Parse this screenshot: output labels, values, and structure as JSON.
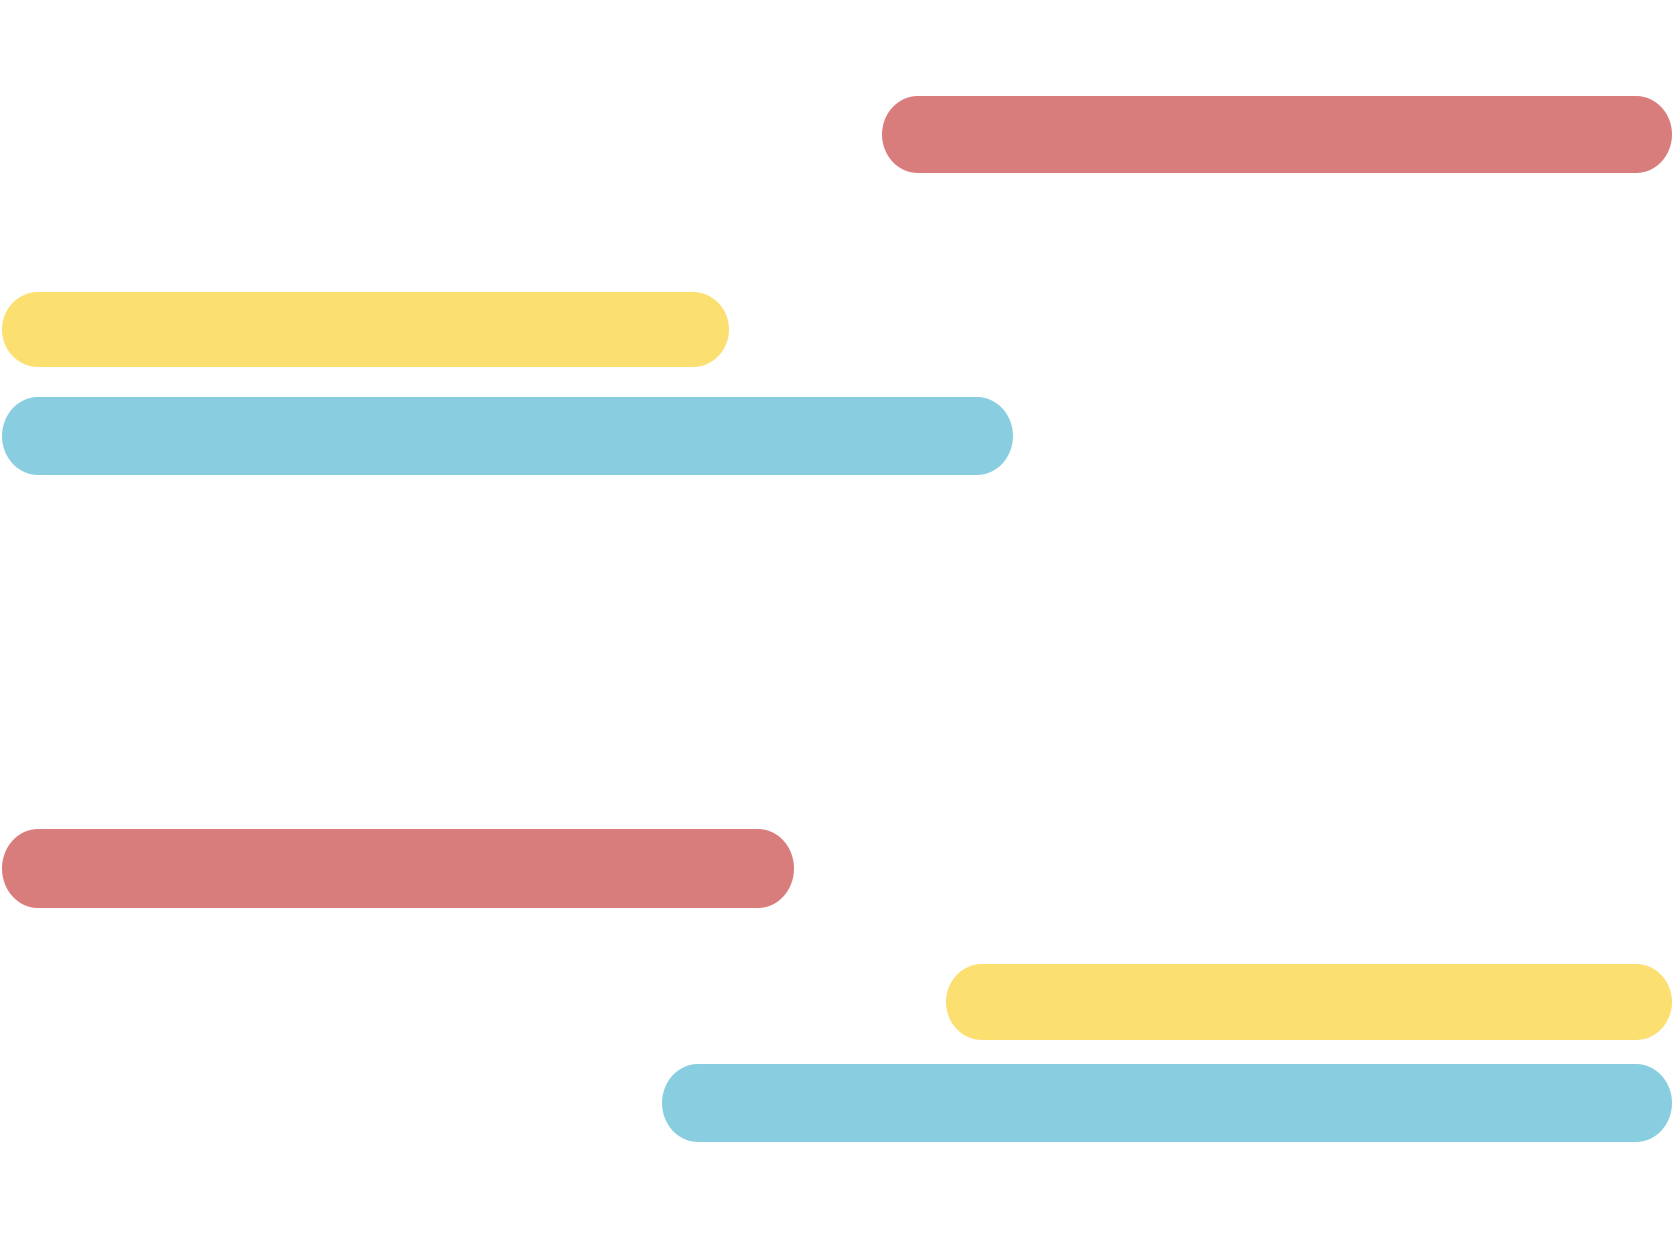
{
  "palette": {
    "background": "#ffffff",
    "red": "#d97c7c",
    "yellow": "#fbdf70",
    "blue": "#89cee0"
  },
  "groups": [
    {
      "name": "upper-group",
      "bars": [
        {
          "name": "red-bar",
          "color": "red"
        },
        {
          "name": "yellow-bar",
          "color": "yellow"
        },
        {
          "name": "blue-bar",
          "color": "blue"
        }
      ]
    },
    {
      "name": "lower-group",
      "bars": [
        {
          "name": "red-bar",
          "color": "red"
        },
        {
          "name": "yellow-bar",
          "color": "yellow"
        },
        {
          "name": "blue-bar",
          "color": "blue"
        }
      ]
    }
  ]
}
